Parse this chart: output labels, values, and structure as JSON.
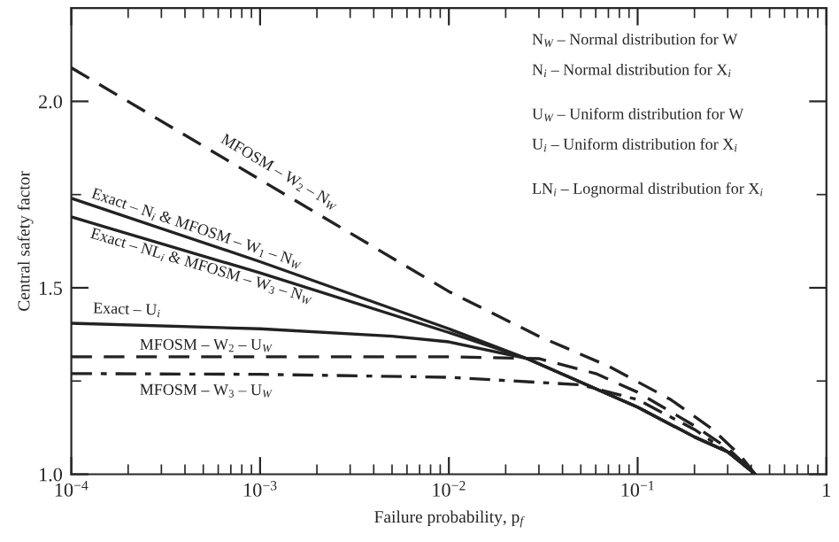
{
  "chart_data": {
    "type": "line",
    "xlabel": "Failure probability, p$_{f}$",
    "ylabel": "Central safety factor",
    "log": "x",
    "xlim": [
      0.0001,
      1
    ],
    "ylim": [
      1.0,
      2.25
    ],
    "xticks": [
      {
        "value": 0.0001,
        "label": "10$^{−4}$"
      },
      {
        "value": 0.001,
        "label": "10$^{−3}$"
      },
      {
        "value": 0.01,
        "label": "10$^{−2}$"
      },
      {
        "value": 0.1,
        "label": "10$^{−1}$"
      },
      {
        "value": 1,
        "label": "1"
      }
    ],
    "yticks": [
      {
        "value": 1.0,
        "label": "1.0"
      },
      {
        "value": 1.5,
        "label": "1.5"
      },
      {
        "value": 2.0,
        "label": "2.0"
      }
    ],
    "grid": false,
    "legend": false,
    "marker": "none",
    "series": [
      {
        "name": "MFOSM – W$_{2}$ – N$_{W}$",
        "color": "#222222",
        "line_style": "dashed",
        "x": [
          0.0001,
          0.001,
          0.01,
          0.03,
          0.07,
          0.15,
          0.25,
          0.35,
          0.42
        ],
        "values": [
          2.09,
          1.79,
          1.49,
          1.37,
          1.29,
          1.2,
          1.12,
          1.05,
          1.0
        ]
      },
      {
        "name": "Exact – N$_{i}$ & MFOSM – W$_{1}$ – N$_{W}$",
        "color": "#222222",
        "line_style": "solid",
        "x": [
          0.0001,
          0.001,
          0.01,
          0.026,
          0.1,
          0.2,
          0.3,
          0.42
        ],
        "values": [
          1.74,
          1.57,
          1.39,
          1.31,
          1.18,
          1.1,
          1.06,
          1.0
        ]
      },
      {
        "name": "Exact – NL$_{i}$ & MFOSM – W$_{3}$ – N$_{W}$",
        "color": "#222222",
        "line_style": "solid",
        "x": [
          0.0001,
          0.001,
          0.01,
          0.026,
          0.1,
          0.2,
          0.3,
          0.42
        ],
        "values": [
          1.69,
          1.54,
          1.38,
          1.31,
          1.18,
          1.1,
          1.06,
          1.0
        ]
      },
      {
        "name": "Exact – U$_{i}$",
        "color": "#222222",
        "line_style": "solid",
        "x": [
          0.0001,
          0.001,
          0.005,
          0.01,
          0.026,
          0.1,
          0.2,
          0.3,
          0.42
        ],
        "values": [
          1.405,
          1.39,
          1.37,
          1.355,
          1.31,
          1.18,
          1.1,
          1.06,
          1.0
        ]
      },
      {
        "name": "MFOSM – W$_{2}$ – U$_{W}$",
        "color": "#222222",
        "line_style": "dashed",
        "x": [
          0.0001,
          0.001,
          0.01,
          0.03,
          0.06,
          0.1,
          0.2,
          0.3,
          0.42
        ],
        "values": [
          1.315,
          1.315,
          1.315,
          1.31,
          1.27,
          1.22,
          1.13,
          1.07,
          1.0
        ]
      },
      {
        "name": "MFOSM – W$_{3}$ – U$_{W}$",
        "color": "#222222",
        "line_style": "dashdot",
        "x": [
          0.0001,
          0.001,
          0.01,
          0.05,
          0.1,
          0.2,
          0.3,
          0.42
        ],
        "values": [
          1.27,
          1.268,
          1.26,
          1.24,
          1.2,
          1.12,
          1.06,
          1.0
        ]
      }
    ],
    "annotations": [
      "N$_{W}$ – Normal distribution for W",
      "N$_{i}$ – Normal distribution for X$_{i}$",
      "U$_{W}$ – Uniform distribution for W",
      "U$_{i}$ – Uniform distribution for X$_{i}$",
      "LN$_{i}$ – Lognormal distribution for X$_{i}$"
    ]
  }
}
